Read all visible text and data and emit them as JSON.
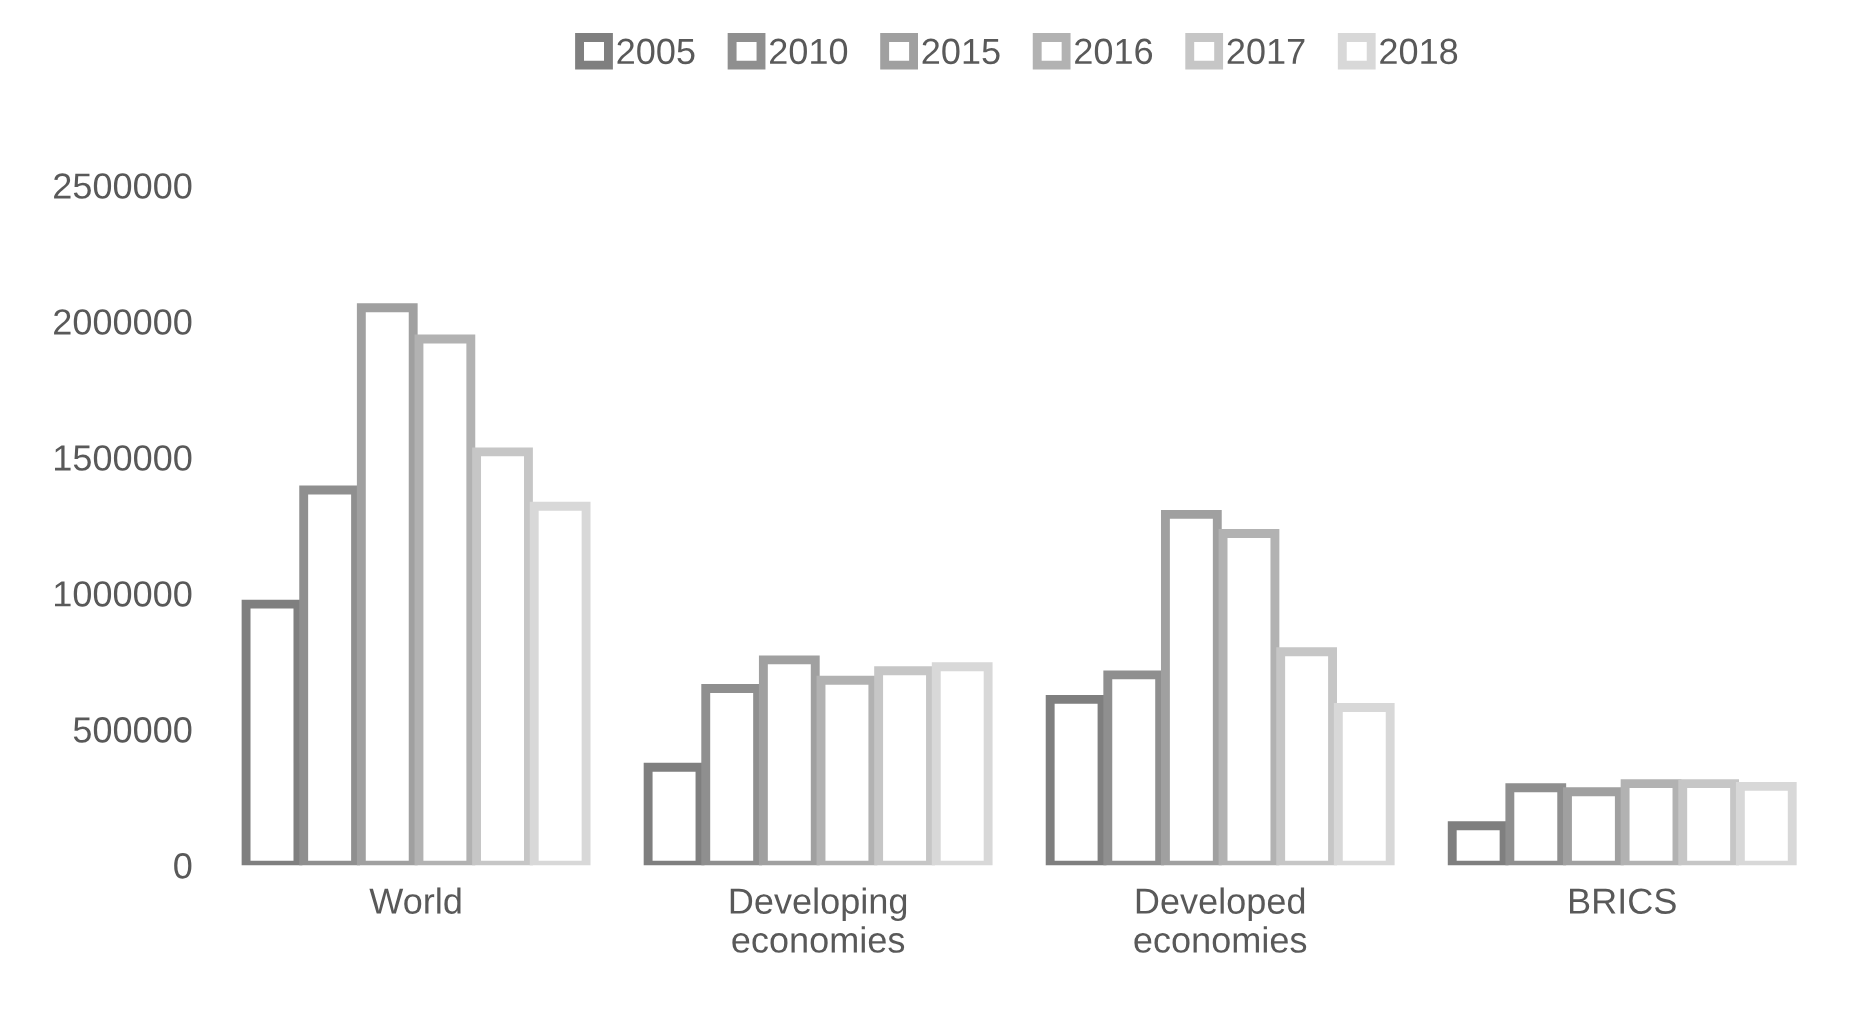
{
  "chart_data": {
    "type": "bar",
    "categories": [
      "World",
      "Developing\neconomies",
      "Developed\neconomies",
      "BRICS"
    ],
    "series": [
      {
        "name": "2005",
        "color": "#7f7f7f",
        "values": [
          960000,
          360000,
          610000,
          145000
        ]
      },
      {
        "name": "2010",
        "color": "#8f8f8f",
        "values": [
          1380000,
          650000,
          700000,
          285000
        ]
      },
      {
        "name": "2015",
        "color": "#a0a0a0",
        "values": [
          2050000,
          755000,
          1290000,
          270000
        ]
      },
      {
        "name": "2016",
        "color": "#b2b2b2",
        "values": [
          1935000,
          680000,
          1220000,
          300000
        ]
      },
      {
        "name": "2017",
        "color": "#c6c6c6",
        "values": [
          1520000,
          715000,
          785000,
          300000
        ]
      },
      {
        "name": "2018",
        "color": "#d8d8d8",
        "values": [
          1320000,
          730000,
          580000,
          290000
        ]
      }
    ],
    "ylim": [
      0,
      2500000
    ],
    "yticks": [
      0,
      500000,
      1000000,
      1500000,
      2000000,
      2500000
    ],
    "grid": false,
    "legend": "top"
  }
}
